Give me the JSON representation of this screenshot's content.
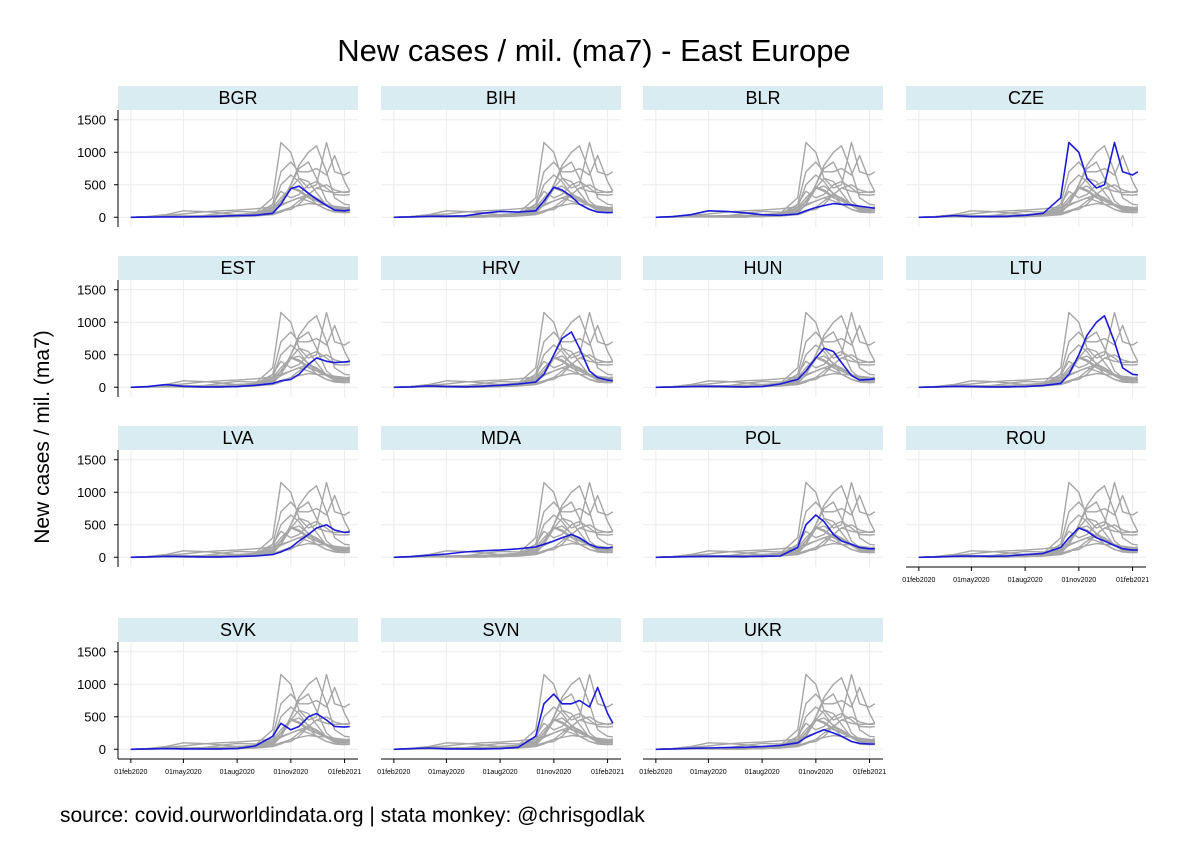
{
  "chart_data": {
    "type": "line",
    "title": "New cases / mil. (ma7) - East Europe",
    "ylabel": "New cases / mil. (ma7)",
    "xlabel": "",
    "ylim": [
      -150,
      1650
    ],
    "yticks": [
      0,
      500,
      1000,
      1500
    ],
    "xlim": [
      "2020-01-10",
      "2021-02-24"
    ],
    "xticks": [
      {
        "date": "2020-02-01",
        "label": "01feb2020"
      },
      {
        "date": "2020-05-01",
        "label": "01may2020"
      },
      {
        "date": "2020-08-01",
        "label": "01aug2020"
      },
      {
        "date": "2020-11-01",
        "label": "01nov2020"
      },
      {
        "date": "2021-02-01",
        "label": "01feb2021"
      }
    ],
    "x": [
      "2020-02-01",
      "2020-03-01",
      "2020-04-01",
      "2020-05-01",
      "2020-06-01",
      "2020-07-01",
      "2020-08-01",
      "2020-09-01",
      "2020-10-01",
      "2020-10-15",
      "2020-11-01",
      "2020-11-15",
      "2020-12-01",
      "2020-12-15",
      "2021-01-01",
      "2021-01-15",
      "2021-02-01",
      "2021-02-10"
    ],
    "highlight_color": "#1a1adb",
    "context_color": "#a6a6a6",
    "strip_color": "#d9ecf2",
    "panels": [
      {
        "name": "BGR",
        "values": [
          0,
          2,
          5,
          5,
          8,
          15,
          25,
          30,
          60,
          200,
          440,
          480,
          370,
          280,
          180,
          110,
          100,
          110
        ]
      },
      {
        "name": "BIH",
        "values": [
          0,
          5,
          15,
          15,
          20,
          60,
          90,
          80,
          100,
          250,
          460,
          420,
          320,
          200,
          120,
          80,
          70,
          75
        ]
      },
      {
        "name": "BLR",
        "values": [
          0,
          10,
          40,
          100,
          90,
          70,
          40,
          30,
          50,
          100,
          150,
          180,
          210,
          200,
          190,
          170,
          150,
          140
        ]
      },
      {
        "name": "CZE",
        "values": [
          0,
          5,
          25,
          10,
          10,
          15,
          30,
          60,
          300,
          1150,
          1000,
          600,
          450,
          500,
          1150,
          700,
          650,
          700
        ]
      },
      {
        "name": "EST",
        "values": [
          0,
          10,
          40,
          15,
          5,
          5,
          10,
          30,
          60,
          100,
          120,
          200,
          350,
          450,
          400,
          380,
          390,
          400
        ]
      },
      {
        "name": "HRV",
        "values": [
          0,
          5,
          20,
          10,
          5,
          15,
          30,
          50,
          80,
          200,
          500,
          750,
          850,
          600,
          250,
          150,
          110,
          100
        ]
      },
      {
        "name": "HUN",
        "values": [
          0,
          2,
          10,
          15,
          10,
          5,
          10,
          50,
          120,
          250,
          450,
          600,
          550,
          380,
          180,
          110,
          120,
          130
        ]
      },
      {
        "name": "LTU",
        "values": [
          0,
          5,
          15,
          10,
          5,
          5,
          10,
          25,
          60,
          200,
          500,
          800,
          1000,
          1100,
          700,
          300,
          200,
          190
        ]
      },
      {
        "name": "LVA",
        "values": [
          0,
          5,
          15,
          10,
          5,
          5,
          10,
          20,
          40,
          80,
          150,
          250,
          350,
          450,
          500,
          420,
          380,
          390
        ]
      },
      {
        "name": "MDA",
        "values": [
          0,
          10,
          30,
          50,
          80,
          100,
          110,
          130,
          160,
          200,
          250,
          300,
          350,
          300,
          200,
          150,
          140,
          160
        ]
      },
      {
        "name": "POL",
        "values": [
          0,
          5,
          10,
          15,
          15,
          10,
          15,
          20,
          150,
          500,
          650,
          550,
          350,
          250,
          200,
          150,
          130,
          130
        ]
      },
      {
        "name": "ROU",
        "values": [
          0,
          5,
          15,
          20,
          15,
          20,
          40,
          60,
          150,
          300,
          450,
          400,
          300,
          250,
          180,
          130,
          110,
          110
        ]
      },
      {
        "name": "SVK",
        "values": [
          0,
          5,
          10,
          5,
          5,
          5,
          10,
          50,
          200,
          400,
          300,
          350,
          500,
          550,
          450,
          350,
          340,
          350
        ]
      },
      {
        "name": "SVN",
        "values": [
          0,
          10,
          20,
          5,
          5,
          5,
          10,
          30,
          200,
          700,
          850,
          700,
          700,
          750,
          650,
          950,
          550,
          400
        ]
      },
      {
        "name": "UKR",
        "values": [
          0,
          5,
          15,
          20,
          25,
          30,
          40,
          60,
          100,
          180,
          250,
          300,
          250,
          200,
          120,
          90,
          80,
          80
        ]
      }
    ]
  },
  "footer": {
    "source": "source: covid.ourworldindata.org | stata monkey: @chrisgodlak"
  }
}
